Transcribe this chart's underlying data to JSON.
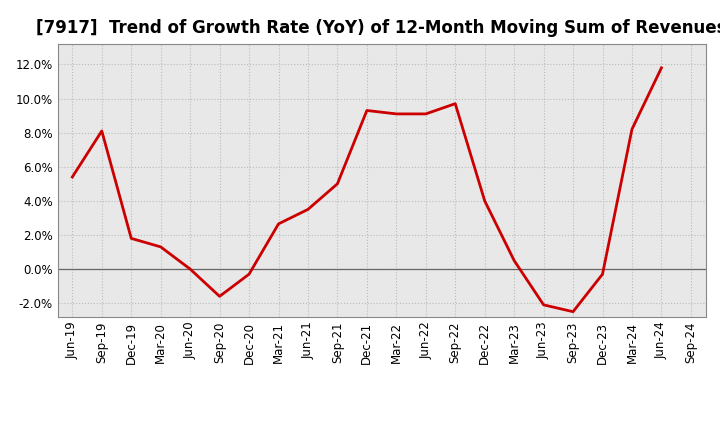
{
  "title": "[7917]  Trend of Growth Rate (YoY) of 12-Month Moving Sum of Revenues",
  "x_labels": [
    "Jun-19",
    "Sep-19",
    "Dec-19",
    "Mar-20",
    "Jun-20",
    "Sep-20",
    "Dec-20",
    "Mar-21",
    "Jun-21",
    "Sep-21",
    "Dec-21",
    "Mar-22",
    "Jun-22",
    "Sep-22",
    "Dec-22",
    "Mar-23",
    "Jun-23",
    "Sep-23",
    "Dec-23",
    "Mar-24",
    "Jun-24",
    "Sep-24"
  ],
  "y_values": [
    5.4,
    8.1,
    1.8,
    1.3,
    0.0,
    -1.6,
    -0.3,
    2.65,
    3.5,
    5.0,
    9.3,
    9.1,
    9.1,
    9.7,
    4.0,
    0.5,
    -2.1,
    -2.5,
    -0.3,
    8.2,
    11.8,
    null
  ],
  "line_color": "#cc0000",
  "line_width": 2.0,
  "background_color": "#ffffff",
  "plot_bg_color": "#e8e8e8",
  "grid_color": "#bbbbbb",
  "zero_line_color": "#666666",
  "title_fontsize": 12,
  "tick_fontsize": 8.5,
  "ylim": [
    -2.8,
    13.2
  ],
  "yticks": [
    -2.0,
    0.0,
    2.0,
    4.0,
    6.0,
    8.0,
    10.0,
    12.0
  ]
}
